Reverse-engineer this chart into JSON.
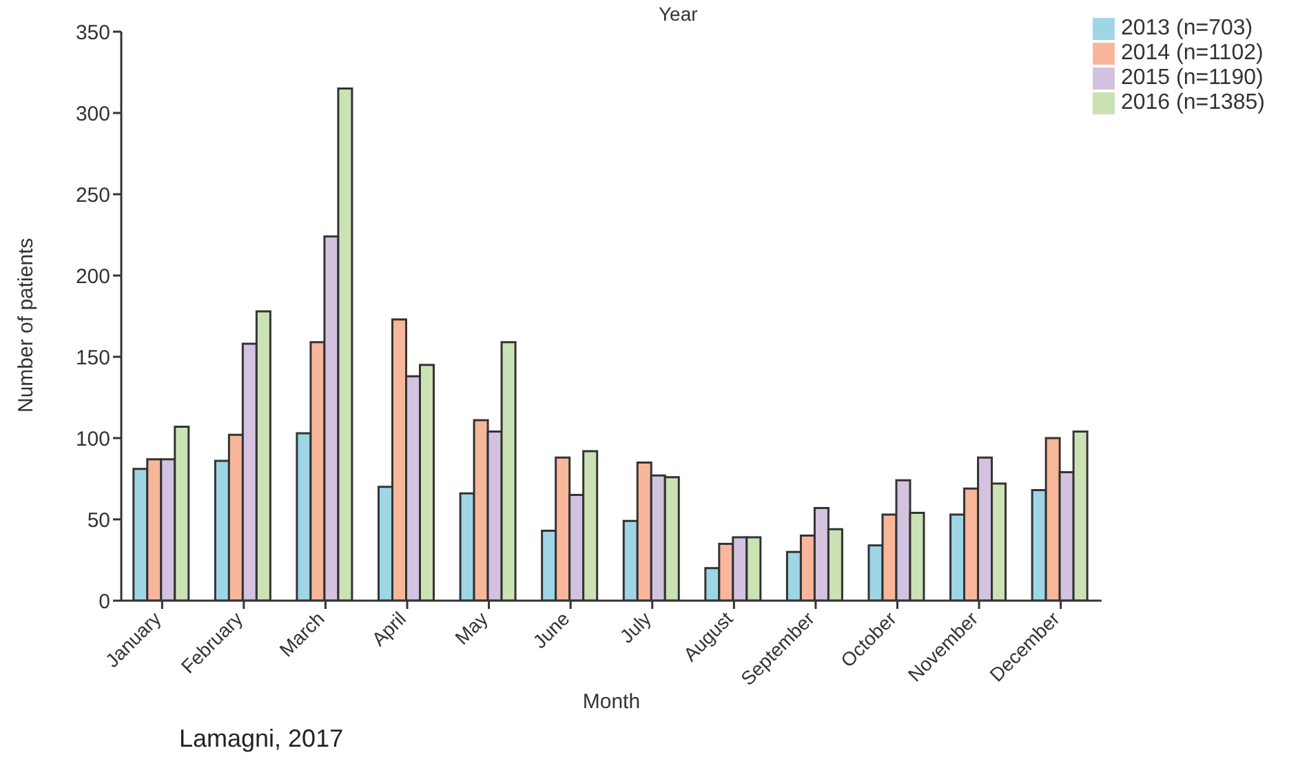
{
  "chart_data": {
    "type": "bar",
    "legend_title": "Year",
    "xlabel": "Month",
    "ylabel": "Number of patients",
    "annotations": [
      "Lamagni, 2017"
    ],
    "categories": [
      "January",
      "February",
      "March",
      "April",
      "May",
      "June",
      "July",
      "August",
      "September",
      "October",
      "November",
      "December"
    ],
    "series": [
      {
        "name": "2013 (n=703)",
        "color": "#9ed6e6",
        "values": [
          81,
          86,
          103,
          70,
          66,
          43,
          49,
          20,
          30,
          34,
          53,
          68
        ]
      },
      {
        "name": "2014 (n=1102)",
        "color": "#f8b79b",
        "values": [
          87,
          102,
          159,
          173,
          111,
          88,
          85,
          35,
          40,
          53,
          69,
          100
        ]
      },
      {
        "name": "2015 (n=1190)",
        "color": "#d3c3e0",
        "values": [
          87,
          158,
          224,
          138,
          104,
          65,
          77,
          39,
          57,
          74,
          88,
          79
        ]
      },
      {
        "name": "2016 (n=1385)",
        "color": "#cbe2b5",
        "values": [
          107,
          178,
          315,
          145,
          159,
          92,
          76,
          39,
          44,
          54,
          72,
          104
        ]
      }
    ],
    "ylim": [
      0,
      350
    ],
    "yticks": [
      0,
      50,
      100,
      150,
      200,
      250,
      300,
      350
    ],
    "grid": false,
    "legend": "top right"
  }
}
